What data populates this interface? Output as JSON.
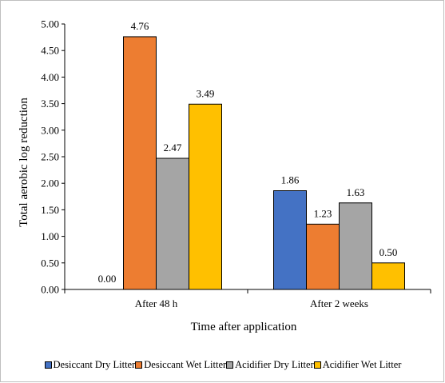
{
  "chart_data": {
    "type": "bar",
    "title": "",
    "ylabel": "Total aerobic log reduction",
    "xlabel": "Time after application",
    "categories": [
      "After 48 h",
      "After 2 weeks"
    ],
    "ylim": [
      0,
      5
    ],
    "yticks": [
      "0.00",
      "0.50",
      "1.00",
      "1.50",
      "2.00",
      "2.50",
      "3.00",
      "3.50",
      "4.00",
      "4.50",
      "5.00"
    ],
    "series": [
      {
        "name": "Desiccant Dry Litter",
        "color": "#4472c4",
        "values": [
          0.0,
          1.86
        ],
        "labels": [
          "0.00",
          "1.86"
        ]
      },
      {
        "name": "Desiccant Wet Litter",
        "color": "#ed7d31",
        "values": [
          4.76,
          1.23
        ],
        "labels": [
          "4.76",
          "1.23"
        ]
      },
      {
        "name": "Acidifier Dry Litter",
        "color": "#a5a5a5",
        "values": [
          2.47,
          1.63
        ],
        "labels": [
          "2.47",
          "1.63"
        ]
      },
      {
        "name": "Acidifier Wet Litter",
        "color": "#ffc000",
        "values": [
          3.49,
          0.5
        ],
        "labels": [
          "3.49",
          "0.50"
        ]
      }
    ],
    "legend": "bottom",
    "grid": false
  }
}
